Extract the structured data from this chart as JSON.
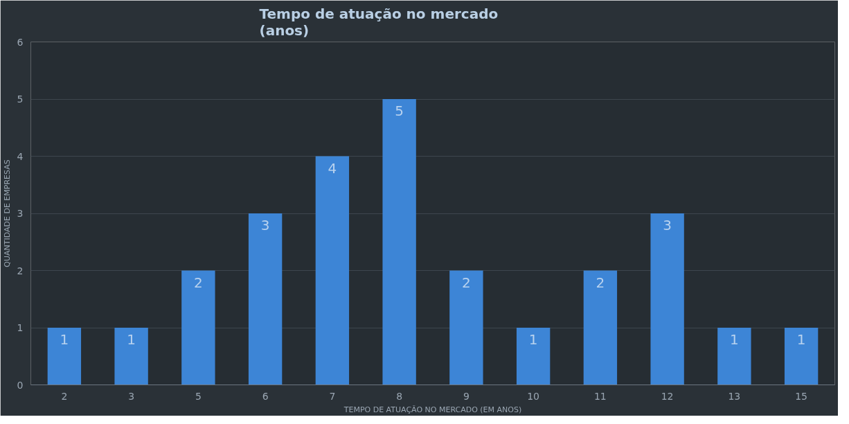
{
  "chart_data": {
    "type": "bar",
    "title": "Tempo de atuação no mercado\n(anos)",
    "xlabel": "TEMPO DE ATUAÇÃO NO MERCADO (EM ANOS)",
    "ylabel": "QUANTIDADE DE EMPRESAS",
    "categories": [
      "2",
      "3",
      "5",
      "6",
      "7",
      "8",
      "9",
      "10",
      "11",
      "12",
      "13",
      "15"
    ],
    "values": [
      1,
      1,
      2,
      3,
      4,
      5,
      2,
      1,
      2,
      3,
      1,
      1
    ],
    "color": "#3d85d6",
    "ylim": [
      0,
      6
    ],
    "yticks": [
      0,
      1,
      2,
      3,
      4,
      5,
      6
    ],
    "grid": "y",
    "data_labels": true
  }
}
